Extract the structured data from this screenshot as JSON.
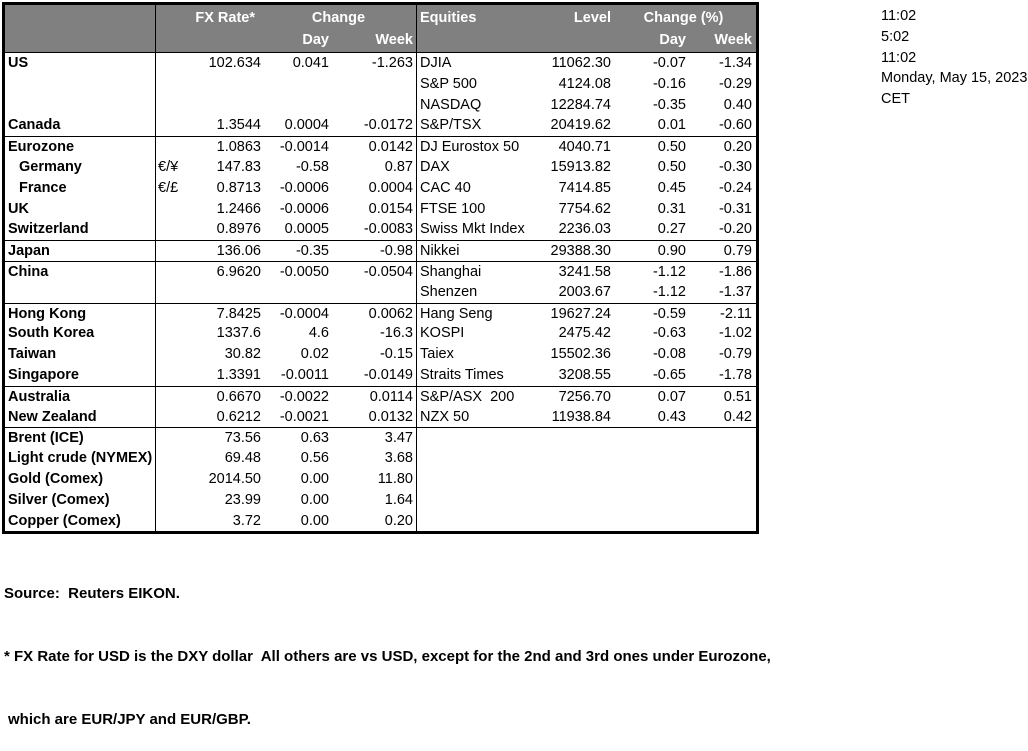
{
  "table": {
    "header": {
      "fx_rate": "FX Rate*",
      "fx_change": "Change",
      "day": "Day",
      "week": "Week",
      "equities": "Equities",
      "level": "Level",
      "eq_change": "Change (%)",
      "day2": "Day",
      "week2": "Week"
    },
    "rows": [
      {
        "label": "US",
        "rate": "102.634",
        "day": "0.041",
        "week": "-1.263",
        "eq": "DJIA",
        "level": "11062.30",
        "eday": "-0.07",
        "eweek": "-1.34"
      },
      {
        "eq": "S&P 500",
        "level": "4124.08",
        "eday": "-0.16",
        "eweek": "-0.29"
      },
      {
        "eq": "NASDAQ",
        "level": "12284.74",
        "eday": "-0.35",
        "eweek": "0.40"
      },
      {
        "label": "Canada",
        "rate": "1.3544",
        "day": "0.0004",
        "week": "-0.0172",
        "eq": "S&P/TSX",
        "level": "20419.62",
        "eday": "0.01",
        "eweek": "-0.60"
      },
      {
        "sep": true,
        "label": "Eurozone",
        "rate": "1.0863",
        "day": "-0.0014",
        "week": "0.0142",
        "eq": "DJ Eurostox 50",
        "level": "4040.71",
        "eday": "0.50",
        "eweek": "0.20"
      },
      {
        "indent": true,
        "label": "Germany",
        "pair": "€/¥",
        "rate": "147.83",
        "day": "-0.58",
        "week": "0.87",
        "eq": "DAX",
        "level": "15913.82",
        "eday": "0.50",
        "eweek": "-0.30"
      },
      {
        "indent": true,
        "label": "France",
        "pair": "€/£",
        "rate": "0.8713",
        "day": "-0.0006",
        "week": "0.0004",
        "eq": "CAC 40",
        "level": "7414.85",
        "eday": "0.45",
        "eweek": "-0.24"
      },
      {
        "label": "UK",
        "rate": "1.2466",
        "day": "-0.0006",
        "week": "0.0154",
        "eq": "FTSE 100",
        "level": "7754.62",
        "eday": "0.31",
        "eweek": "-0.31"
      },
      {
        "label": "Switzerland",
        "rate": "0.8976",
        "day": "0.0005",
        "week": "-0.0083",
        "eq": "Swiss Mkt Index",
        "level": "2236.03",
        "eday": "0.27",
        "eweek": "-0.20"
      },
      {
        "sep": true,
        "label": "Japan",
        "rate": "136.06",
        "day": "-0.35",
        "week": "-0.98",
        "eq": "Nikkei",
        "level": "29388.30",
        "eday": "0.90",
        "eweek": "0.79"
      },
      {
        "sep": true,
        "label": "China",
        "rate": "6.9620",
        "day": "-0.0050",
        "week": "-0.0504",
        "eq": "Shanghai",
        "level": "3241.58",
        "eday": "-1.12",
        "eweek": "-1.86"
      },
      {
        "eq": "Shenzen",
        "level": "2003.67",
        "eday": "-1.12",
        "eweek": "-1.37"
      },
      {
        "sep": true,
        "label": "Hong Kong",
        "rate": "7.8425",
        "day": "-0.0004",
        "week": "0.0062",
        "eq": "Hang Seng",
        "level": "19627.24",
        "eday": "-0.59",
        "eweek": "-2.11"
      },
      {
        "label": "South Korea",
        "rate": "1337.6",
        "day": "4.6",
        "week": "-16.3",
        "eq": "KOSPI",
        "level": "2475.42",
        "eday": "-0.63",
        "eweek": "-1.02"
      },
      {
        "label": "Taiwan",
        "rate": "30.82",
        "day": "0.02",
        "week": "-0.15",
        "eq": "Taiex",
        "level": "15502.36",
        "eday": "-0.08",
        "eweek": "-0.79"
      },
      {
        "label": "Singapore",
        "rate": "1.3391",
        "day": "-0.0011",
        "week": "-0.0149",
        "eq": "Straits Times",
        "level": "3208.55",
        "eday": "-0.65",
        "eweek": "-1.78"
      },
      {
        "sep": true,
        "label": "Australia",
        "rate": "0.6670",
        "day": "-0.0022",
        "week": "0.0114",
        "eq": "S&P/ASX  200",
        "level": "7256.70",
        "eday": "0.07",
        "eweek": "0.51"
      },
      {
        "label": "New Zealand",
        "rate": "0.6212",
        "day": "-0.0021",
        "week": "0.0132",
        "eq": "NZX 50",
        "level": "11938.84",
        "eday": "0.43",
        "eweek": "0.42"
      },
      {
        "sep": true,
        "label": "Brent (ICE)",
        "rate": "73.56",
        "day": "0.63",
        "week": "3.47"
      },
      {
        "label": "Light crude (NYMEX)",
        "rate": "69.48",
        "day": "0.56",
        "week": "3.68"
      },
      {
        "label": "Gold (Comex)",
        "rate": "2014.50",
        "day": "0.00",
        "week": "11.80"
      },
      {
        "label": "Silver (Comex)",
        "rate": "23.99",
        "day": "0.00",
        "week": "1.64"
      },
      {
        "label": "Copper (Comex)",
        "rate": "3.72",
        "day": "0.00",
        "week": "0.20"
      }
    ]
  },
  "timestamps": {
    "lines": [
      "11:02",
      "5:02",
      "11:02",
      "Monday, May 15, 2023",
      "CET"
    ]
  },
  "footer": {
    "source": "Source:  Reuters EIKON.",
    "note1": "* FX Rate for USD is the DXY dollar  All others are vs USD, except for the 2nd and 3rd ones under Eurozone,",
    "note2": "which are EUR/JPY and EUR/GBP."
  },
  "colors": {
    "header_bg": "#808080",
    "header_text": "#ffffff",
    "grid": "#000000",
    "text": "#000000"
  }
}
